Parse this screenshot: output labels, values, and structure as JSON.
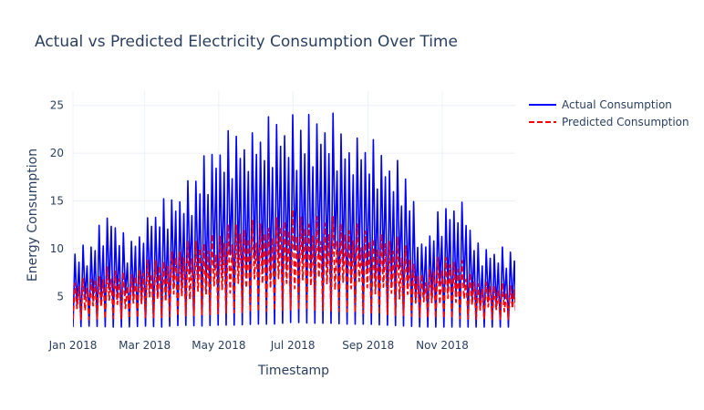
{
  "chart_data": {
    "type": "line",
    "title": "Actual vs Predicted Electricity Consumption Over Time",
    "xlabel": "Timestamp",
    "ylabel": "Energy Consumption",
    "x_range": [
      "2018-01-01",
      "2018-12-31"
    ],
    "ylim": [
      1.5,
      26.5
    ],
    "x_ticks": [
      {
        "date": "2018-01-01",
        "label": "Jan 2018"
      },
      {
        "date": "2018-03-01",
        "label": "Mar 2018"
      },
      {
        "date": "2018-05-01",
        "label": "May 2018"
      },
      {
        "date": "2018-07-01",
        "label": "Jul 2018"
      },
      {
        "date": "2018-09-01",
        "label": "Sep 2018"
      },
      {
        "date": "2018-11-01",
        "label": "Nov 2018"
      }
    ],
    "y_ticks": [
      5,
      10,
      15,
      20,
      25
    ],
    "grid": true,
    "legend_position": "top-right",
    "series": [
      {
        "name": "Actual Consumption",
        "color": "#0000ff",
        "dash": "solid",
        "x": [
          "2018-01-01",
          "2018-01-15",
          "2018-02-01",
          "2018-02-15",
          "2018-03-01",
          "2018-03-15",
          "2018-04-01",
          "2018-04-15",
          "2018-05-01",
          "2018-05-15",
          "2018-06-01",
          "2018-06-15",
          "2018-07-01",
          "2018-07-15",
          "2018-08-01",
          "2018-08-15",
          "2018-09-01",
          "2018-09-15",
          "2018-10-01",
          "2018-10-15",
          "2018-11-01",
          "2018-11-15",
          "2018-12-01",
          "2018-12-15",
          "2018-12-31"
        ],
        "low": [
          1.8,
          1.9,
          1.8,
          1.8,
          1.9,
          1.8,
          2.0,
          1.9,
          2.0,
          2.0,
          2.1,
          2.1,
          2.3,
          2.2,
          2.2,
          2.1,
          2.1,
          2.0,
          1.9,
          1.8,
          1.8,
          1.8,
          1.8,
          1.8,
          1.8
        ],
        "high": [
          10.5,
          10.8,
          14.5,
          11.0,
          13.5,
          15.2,
          17.0,
          19.0,
          22.0,
          23.5,
          23.0,
          24.5,
          24.8,
          24.0,
          25.0,
          23.0,
          22.0,
          20.8,
          19.3,
          11.0,
          15.0,
          16.3,
          10.5,
          10.5,
          10.4
        ]
      },
      {
        "name": "Predicted Consumption",
        "color": "#ff0000",
        "dash": "dash",
        "x": [
          "2018-01-01",
          "2018-01-15",
          "2018-02-01",
          "2018-02-15",
          "2018-03-01",
          "2018-03-15",
          "2018-04-01",
          "2018-04-15",
          "2018-05-01",
          "2018-05-15",
          "2018-06-01",
          "2018-06-15",
          "2018-07-01",
          "2018-07-15",
          "2018-08-01",
          "2018-08-15",
          "2018-09-01",
          "2018-09-15",
          "2018-10-01",
          "2018-10-15",
          "2018-11-01",
          "2018-11-15",
          "2018-12-01",
          "2018-12-15",
          "2018-12-31"
        ],
        "low": [
          2.6,
          2.6,
          2.7,
          2.7,
          2.8,
          2.8,
          3.0,
          3.0,
          3.2,
          3.3,
          3.4,
          3.5,
          3.6,
          3.6,
          3.5,
          3.4,
          3.2,
          3.1,
          3.0,
          2.8,
          2.7,
          2.7,
          2.6,
          2.6,
          2.6
        ],
        "high": [
          6.8,
          7.0,
          8.5,
          7.2,
          8.8,
          9.5,
          10.5,
          11.5,
          12.0,
          13.0,
          13.3,
          13.6,
          14.2,
          13.8,
          13.5,
          13.0,
          12.5,
          11.8,
          11.0,
          7.5,
          9.5,
          9.2,
          6.8,
          6.5,
          6.3
        ]
      }
    ]
  }
}
